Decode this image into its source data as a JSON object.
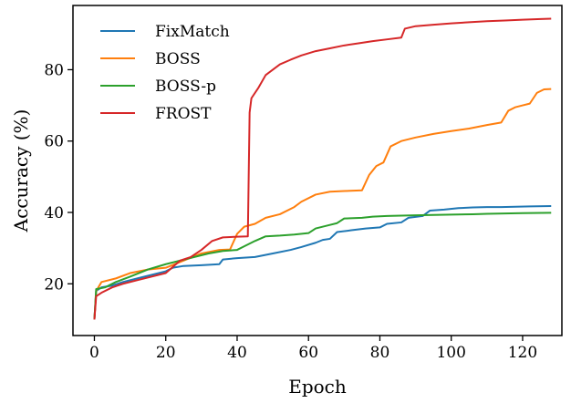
{
  "chart_data": {
    "type": "line",
    "xlabel": "Epoch",
    "ylabel": "Accuracy (%)",
    "xlim": [
      -6,
      131
    ],
    "ylim": [
      5.5,
      98
    ],
    "xticks": [
      0,
      20,
      40,
      60,
      80,
      100,
      120
    ],
    "yticks": [
      20,
      40,
      60,
      80
    ],
    "grid": false,
    "legend": "top-left",
    "series": [
      {
        "name": "FixMatch",
        "color": "#1f77b4",
        "points": [
          [
            0,
            10
          ],
          [
            0.5,
            18
          ],
          [
            2,
            19
          ],
          [
            5,
            19.5
          ],
          [
            8,
            20.5
          ],
          [
            12,
            21.5
          ],
          [
            16,
            22.5
          ],
          [
            20,
            23.5
          ],
          [
            22,
            24.5
          ],
          [
            25,
            25
          ],
          [
            30,
            25.2
          ],
          [
            35,
            25.5
          ],
          [
            36,
            26.8
          ],
          [
            40,
            27.2
          ],
          [
            45,
            27.5
          ],
          [
            50,
            28.5
          ],
          [
            55,
            29.5
          ],
          [
            58,
            30.3
          ],
          [
            62,
            31.5
          ],
          [
            64,
            32.3
          ],
          [
            66,
            32.6
          ],
          [
            68,
            34.5
          ],
          [
            72,
            35
          ],
          [
            76,
            35.5
          ],
          [
            80,
            35.8
          ],
          [
            82,
            36.8
          ],
          [
            86,
            37.2
          ],
          [
            88,
            38.5
          ],
          [
            92,
            39
          ],
          [
            94,
            40.5
          ],
          [
            98,
            40.8
          ],
          [
            102,
            41.2
          ],
          [
            106,
            41.4
          ],
          [
            110,
            41.5
          ],
          [
            114,
            41.5
          ],
          [
            118,
            41.6
          ],
          [
            122,
            41.7
          ],
          [
            128,
            41.8
          ]
        ]
      },
      {
        "name": "BOSS",
        "color": "#ff7f0e",
        "points": [
          [
            0,
            10
          ],
          [
            0.5,
            18
          ],
          [
            2,
            20.5
          ],
          [
            6,
            21.5
          ],
          [
            10,
            23
          ],
          [
            15,
            24
          ],
          [
            20,
            24.5
          ],
          [
            25,
            26.5
          ],
          [
            30,
            28.5
          ],
          [
            35,
            29.5
          ],
          [
            38,
            29.6
          ],
          [
            40,
            34
          ],
          [
            42,
            36
          ],
          [
            45,
            36.8
          ],
          [
            48,
            38.5
          ],
          [
            52,
            39.5
          ],
          [
            56,
            41.5
          ],
          [
            58,
            43
          ],
          [
            62,
            45
          ],
          [
            66,
            45.8
          ],
          [
            70,
            46
          ],
          [
            75,
            46.2
          ],
          [
            77,
            50.5
          ],
          [
            79,
            53
          ],
          [
            81,
            54
          ],
          [
            83,
            58.5
          ],
          [
            86,
            60
          ],
          [
            90,
            61
          ],
          [
            95,
            62
          ],
          [
            100,
            62.8
          ],
          [
            105,
            63.5
          ],
          [
            110,
            64.5
          ],
          [
            114,
            65.2
          ],
          [
            116,
            68.5
          ],
          [
            118,
            69.5
          ],
          [
            120,
            70
          ],
          [
            122,
            70.5
          ],
          [
            124,
            73.5
          ],
          [
            126,
            74.5
          ],
          [
            128,
            74.6
          ]
        ]
      },
      {
        "name": "BOSS-p",
        "color": "#2ca02c",
        "points": [
          [
            0,
            10
          ],
          [
            0.5,
            18.5
          ],
          [
            3,
            19
          ],
          [
            6,
            20.5
          ],
          [
            10,
            22
          ],
          [
            15,
            24
          ],
          [
            20,
            25.5
          ],
          [
            24,
            26.5
          ],
          [
            28,
            27.5
          ],
          [
            32,
            28.5
          ],
          [
            36,
            29.2
          ],
          [
            40,
            29.5
          ],
          [
            42,
            30.5
          ],
          [
            45,
            32
          ],
          [
            48,
            33.3
          ],
          [
            52,
            33.5
          ],
          [
            56,
            33.8
          ],
          [
            60,
            34.2
          ],
          [
            62,
            35.5
          ],
          [
            66,
            36.5
          ],
          [
            68,
            37
          ],
          [
            70,
            38.3
          ],
          [
            75,
            38.5
          ],
          [
            78,
            38.8
          ],
          [
            82,
            39
          ],
          [
            86,
            39.1
          ],
          [
            90,
            39.2
          ],
          [
            95,
            39.3
          ],
          [
            100,
            39.4
          ],
          [
            106,
            39.5
          ],
          [
            110,
            39.6
          ],
          [
            120,
            39.8
          ],
          [
            128,
            39.9
          ]
        ]
      },
      {
        "name": "FROST",
        "color": "#d62728",
        "points": [
          [
            0,
            10
          ],
          [
            0.5,
            16.5
          ],
          [
            2,
            17.5
          ],
          [
            5,
            19
          ],
          [
            8,
            20
          ],
          [
            12,
            21
          ],
          [
            16,
            22
          ],
          [
            20,
            23
          ],
          [
            24,
            26.5
          ],
          [
            27,
            27.5
          ],
          [
            30,
            29.5
          ],
          [
            33,
            32
          ],
          [
            36,
            33
          ],
          [
            40,
            33.2
          ],
          [
            43,
            33.3
          ],
          [
            43.5,
            68
          ],
          [
            44,
            72
          ],
          [
            46,
            75
          ],
          [
            48,
            78.5
          ],
          [
            50,
            80
          ],
          [
            52,
            81.5
          ],
          [
            55,
            82.8
          ],
          [
            58,
            84
          ],
          [
            60,
            84.6
          ],
          [
            62,
            85.2
          ],
          [
            66,
            86
          ],
          [
            70,
            86.8
          ],
          [
            74,
            87.4
          ],
          [
            78,
            88
          ],
          [
            82,
            88.5
          ],
          [
            86,
            89
          ],
          [
            87,
            91.5
          ],
          [
            90,
            92.2
          ],
          [
            95,
            92.6
          ],
          [
            100,
            93
          ],
          [
            105,
            93.3
          ],
          [
            110,
            93.6
          ],
          [
            115,
            93.8
          ],
          [
            120,
            94
          ],
          [
            125,
            94.2
          ],
          [
            128,
            94.3
          ]
        ]
      }
    ]
  }
}
